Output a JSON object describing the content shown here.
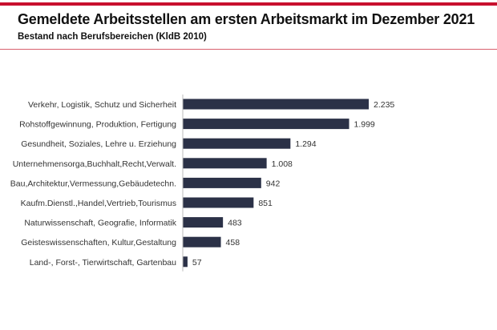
{
  "header": {
    "title": "Gemeldete Arbeitsstellen am ersten Arbeitsmarkt im Dezember 2021",
    "subtitle": "Bestand nach Berufsbereichen (KldB 2010)"
  },
  "colors": {
    "bar": "#2b3147",
    "accent": "#c8102e"
  },
  "chart_data": {
    "type": "bar",
    "orientation": "horizontal",
    "title": "Gemeldete Arbeitsstellen am ersten Arbeitsmarkt im Dezember 2021",
    "subtitle": "Bestand nach Berufsbereichen (KldB 2010)",
    "categories": [
      "Verkehr, Logistik, Schutz und Sicherheit",
      "Rohstoffgewinnung, Produktion, Fertigung",
      "Gesundheit, Soziales, Lehre u. Erziehung",
      "Unternehmensorga,Buchhalt,Recht,Verwalt.",
      "Bau,Architektur,Vermessung,Gebäudetechn.",
      "Kaufm.Dienstl.,Handel,Vertrieb,Tourismus",
      "Naturwissenschaft, Geografie, Informatik",
      "Geisteswissenschaften, Kultur,Gestaltung",
      "Land-, Forst-, Tierwirtschaft, Gartenbau"
    ],
    "values": [
      2235,
      1999,
      1294,
      1008,
      942,
      851,
      483,
      458,
      57
    ],
    "data_labels": [
      "2.235",
      "1.999",
      "1.294",
      "1.008",
      "942",
      "851",
      "483",
      "458",
      "57"
    ],
    "grid": false
  }
}
